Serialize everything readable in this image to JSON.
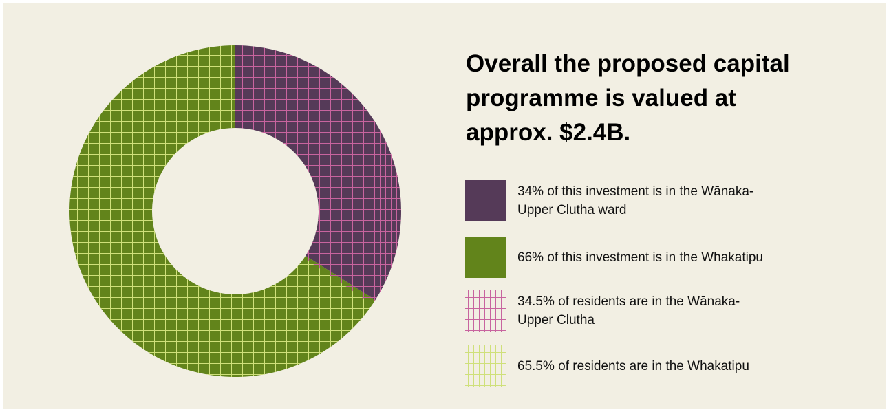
{
  "chart_data": {
    "type": "donut",
    "title": "Overall the proposed capital programme is valued at approx. $2.4B.",
    "slices": [
      {
        "label": "34% of this investment is in the Wānaka-Upper Clutha ward",
        "value": 34,
        "color": "#553a58"
      },
      {
        "label": "66% of this investment is in the Whakatipu",
        "value": 66,
        "color": "#62841b"
      }
    ],
    "overlays": [
      {
        "label": "34.5% of residents are in the Wānaka-Upper Clutha",
        "value": 34.5,
        "color": "#c8649f"
      },
      {
        "label": "65.5% of residents are in the Whakatipu",
        "value": 65.5,
        "color": "#cfe07a"
      }
    ]
  }
}
